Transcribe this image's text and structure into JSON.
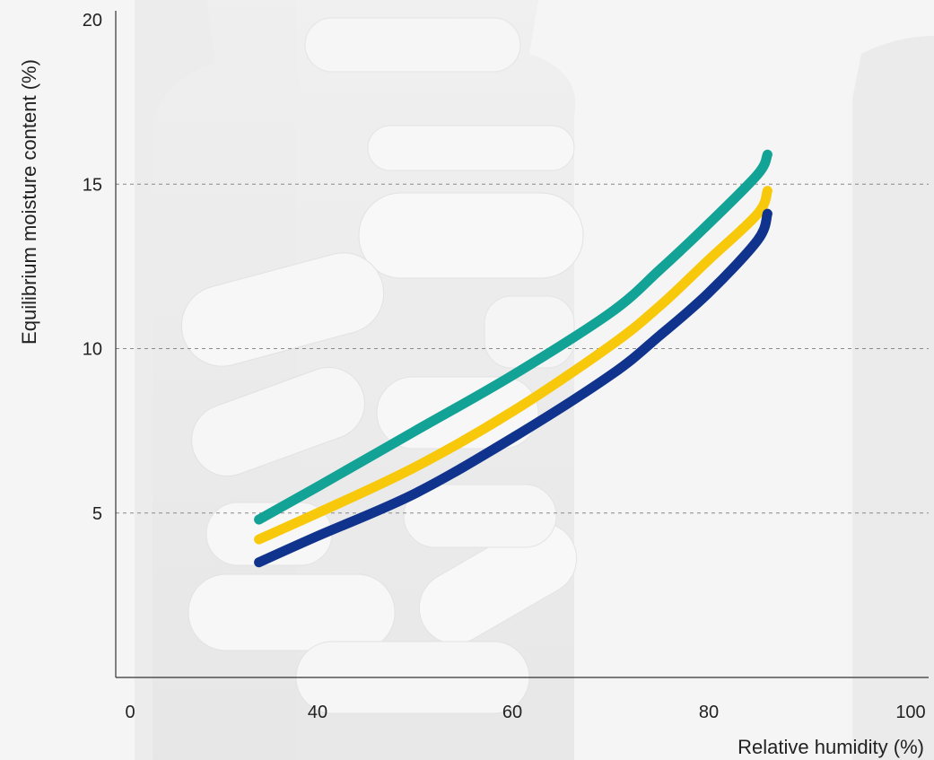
{
  "chart_data": {
    "type": "line",
    "title": "",
    "xlabel": "Relative humidity (%)",
    "ylabel": "Equilibrium moisture content (%)",
    "xlim": [
      20,
      100
    ],
    "ylim": [
      0,
      20
    ],
    "x_ticks": [
      "0",
      "40",
      "60",
      "80",
      "100"
    ],
    "y_ticks": [
      "5",
      "10",
      "15",
      "20"
    ],
    "grid": "horizontal dashed",
    "legend": "none",
    "x": [
      34,
      40,
      50,
      60,
      70,
      75,
      80,
      85,
      86
    ],
    "series": [
      {
        "color": "#12a396",
        "values": [
          4.8,
          5.8,
          7.5,
          9.2,
          11.1,
          12.4,
          13.8,
          15.3,
          15.9
        ]
      },
      {
        "color": "#f7c90a",
        "values": [
          4.2,
          5.0,
          6.4,
          8.1,
          10.1,
          11.3,
          12.7,
          14.1,
          14.8
        ]
      },
      {
        "color": "#10338e",
        "values": [
          3.5,
          4.3,
          5.6,
          7.3,
          9.2,
          10.4,
          11.7,
          13.3,
          14.1
        ]
      }
    ]
  }
}
